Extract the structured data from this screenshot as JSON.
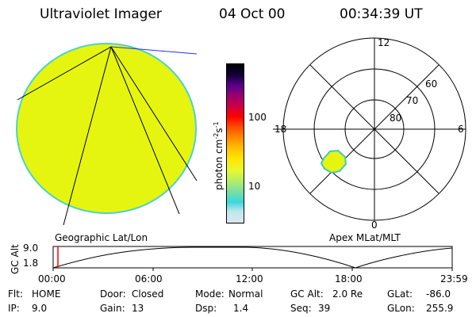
{
  "header": {
    "instrument": "Ultraviolet Imager",
    "date": "04 Oct 00",
    "time": "00:34:39 UT"
  },
  "colorbar": {
    "label_main": "photon cm",
    "label_exp1": "-2",
    "label_mid": "s",
    "label_exp2": "-1",
    "ticks": [
      "100",
      "10"
    ],
    "colors": [
      "#dde6ee",
      "#bfe8ec",
      "#3cd6dc",
      "#7de0a0",
      "#b8f060",
      "#e8f830",
      "#ffe800",
      "#ffc000",
      "#ff9000",
      "#ff5000",
      "#ff0000",
      "#d00040",
      "#9a0070",
      "#55008a",
      "#14003a",
      "#000000"
    ]
  },
  "globe": {
    "caption": "Geographic Lat/Lon",
    "fill_color": "#e6f50f",
    "edge_color": "#4ad3ca"
  },
  "polar": {
    "caption": "Apex MLat/MLT",
    "mlt_labels": {
      "top": "12",
      "left": "18",
      "right": "6",
      "bottom": "0"
    },
    "lat_labels": [
      "60",
      "70",
      "80"
    ],
    "spot_color": "#e6f50f"
  },
  "altitude": {
    "ylabel": "GC Alt",
    "yticks": [
      "9.0",
      "1.8"
    ],
    "xticks": [
      "00:00",
      "06:00",
      "12:00",
      "18:00",
      "23:59"
    ],
    "marker_color": "#ff0000"
  },
  "status": {
    "flt_label": "Flt:",
    "flt_value": "HOME",
    "ip_label": "IP:",
    "ip_value": "9.0",
    "door_label": "Door:",
    "door_value": "Closed",
    "gain_label": "Gain:",
    "gain_value": "13",
    "mode_label": "Mode:",
    "mode_value": "Normal",
    "dsp_label": "Dsp:",
    "dsp_value": "1.4",
    "gcalt_label": "GC Alt:",
    "gcalt_value": "2.0 Re",
    "seq_label": "Seq:",
    "seq_value": "39",
    "glat_label": "GLat:",
    "glat_value": "-86.0",
    "glon_label": "GLon:",
    "glon_value": "255.9"
  }
}
